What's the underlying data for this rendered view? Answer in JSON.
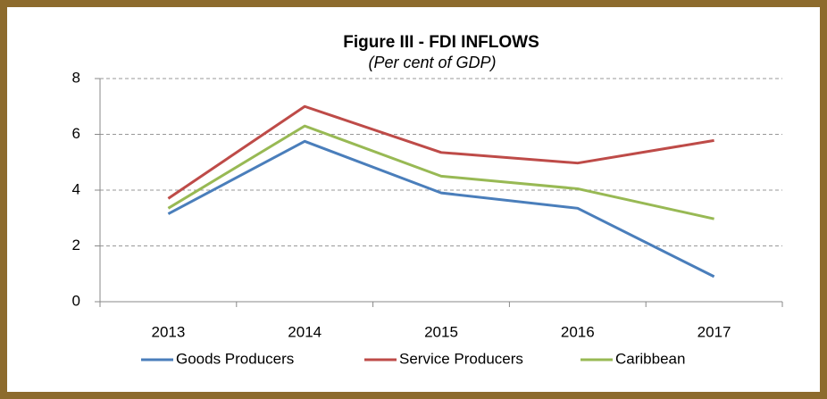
{
  "chart_data": {
    "type": "line",
    "title": "Figure III - FDI INFLOWS",
    "subtitle": "(Per cent of GDP)",
    "categories": [
      "2013",
      "2014",
      "2015",
      "2016",
      "2017"
    ],
    "series": [
      {
        "name": "Goods Producers",
        "color": "#4a7ebb",
        "values": [
          3.15,
          5.75,
          3.9,
          3.35,
          0.9
        ]
      },
      {
        "name": "Service Producers",
        "color": "#be4b48",
        "values": [
          3.7,
          7.0,
          5.35,
          4.97,
          5.78
        ]
      },
      {
        "name": "Caribbean",
        "color": "#98b954",
        "values": [
          3.35,
          6.3,
          4.5,
          4.05,
          2.97
        ]
      }
    ],
    "ylim": [
      0,
      8
    ],
    "yticks": [
      0,
      2,
      4,
      6,
      8
    ],
    "grid": true,
    "legend": "bottom"
  }
}
